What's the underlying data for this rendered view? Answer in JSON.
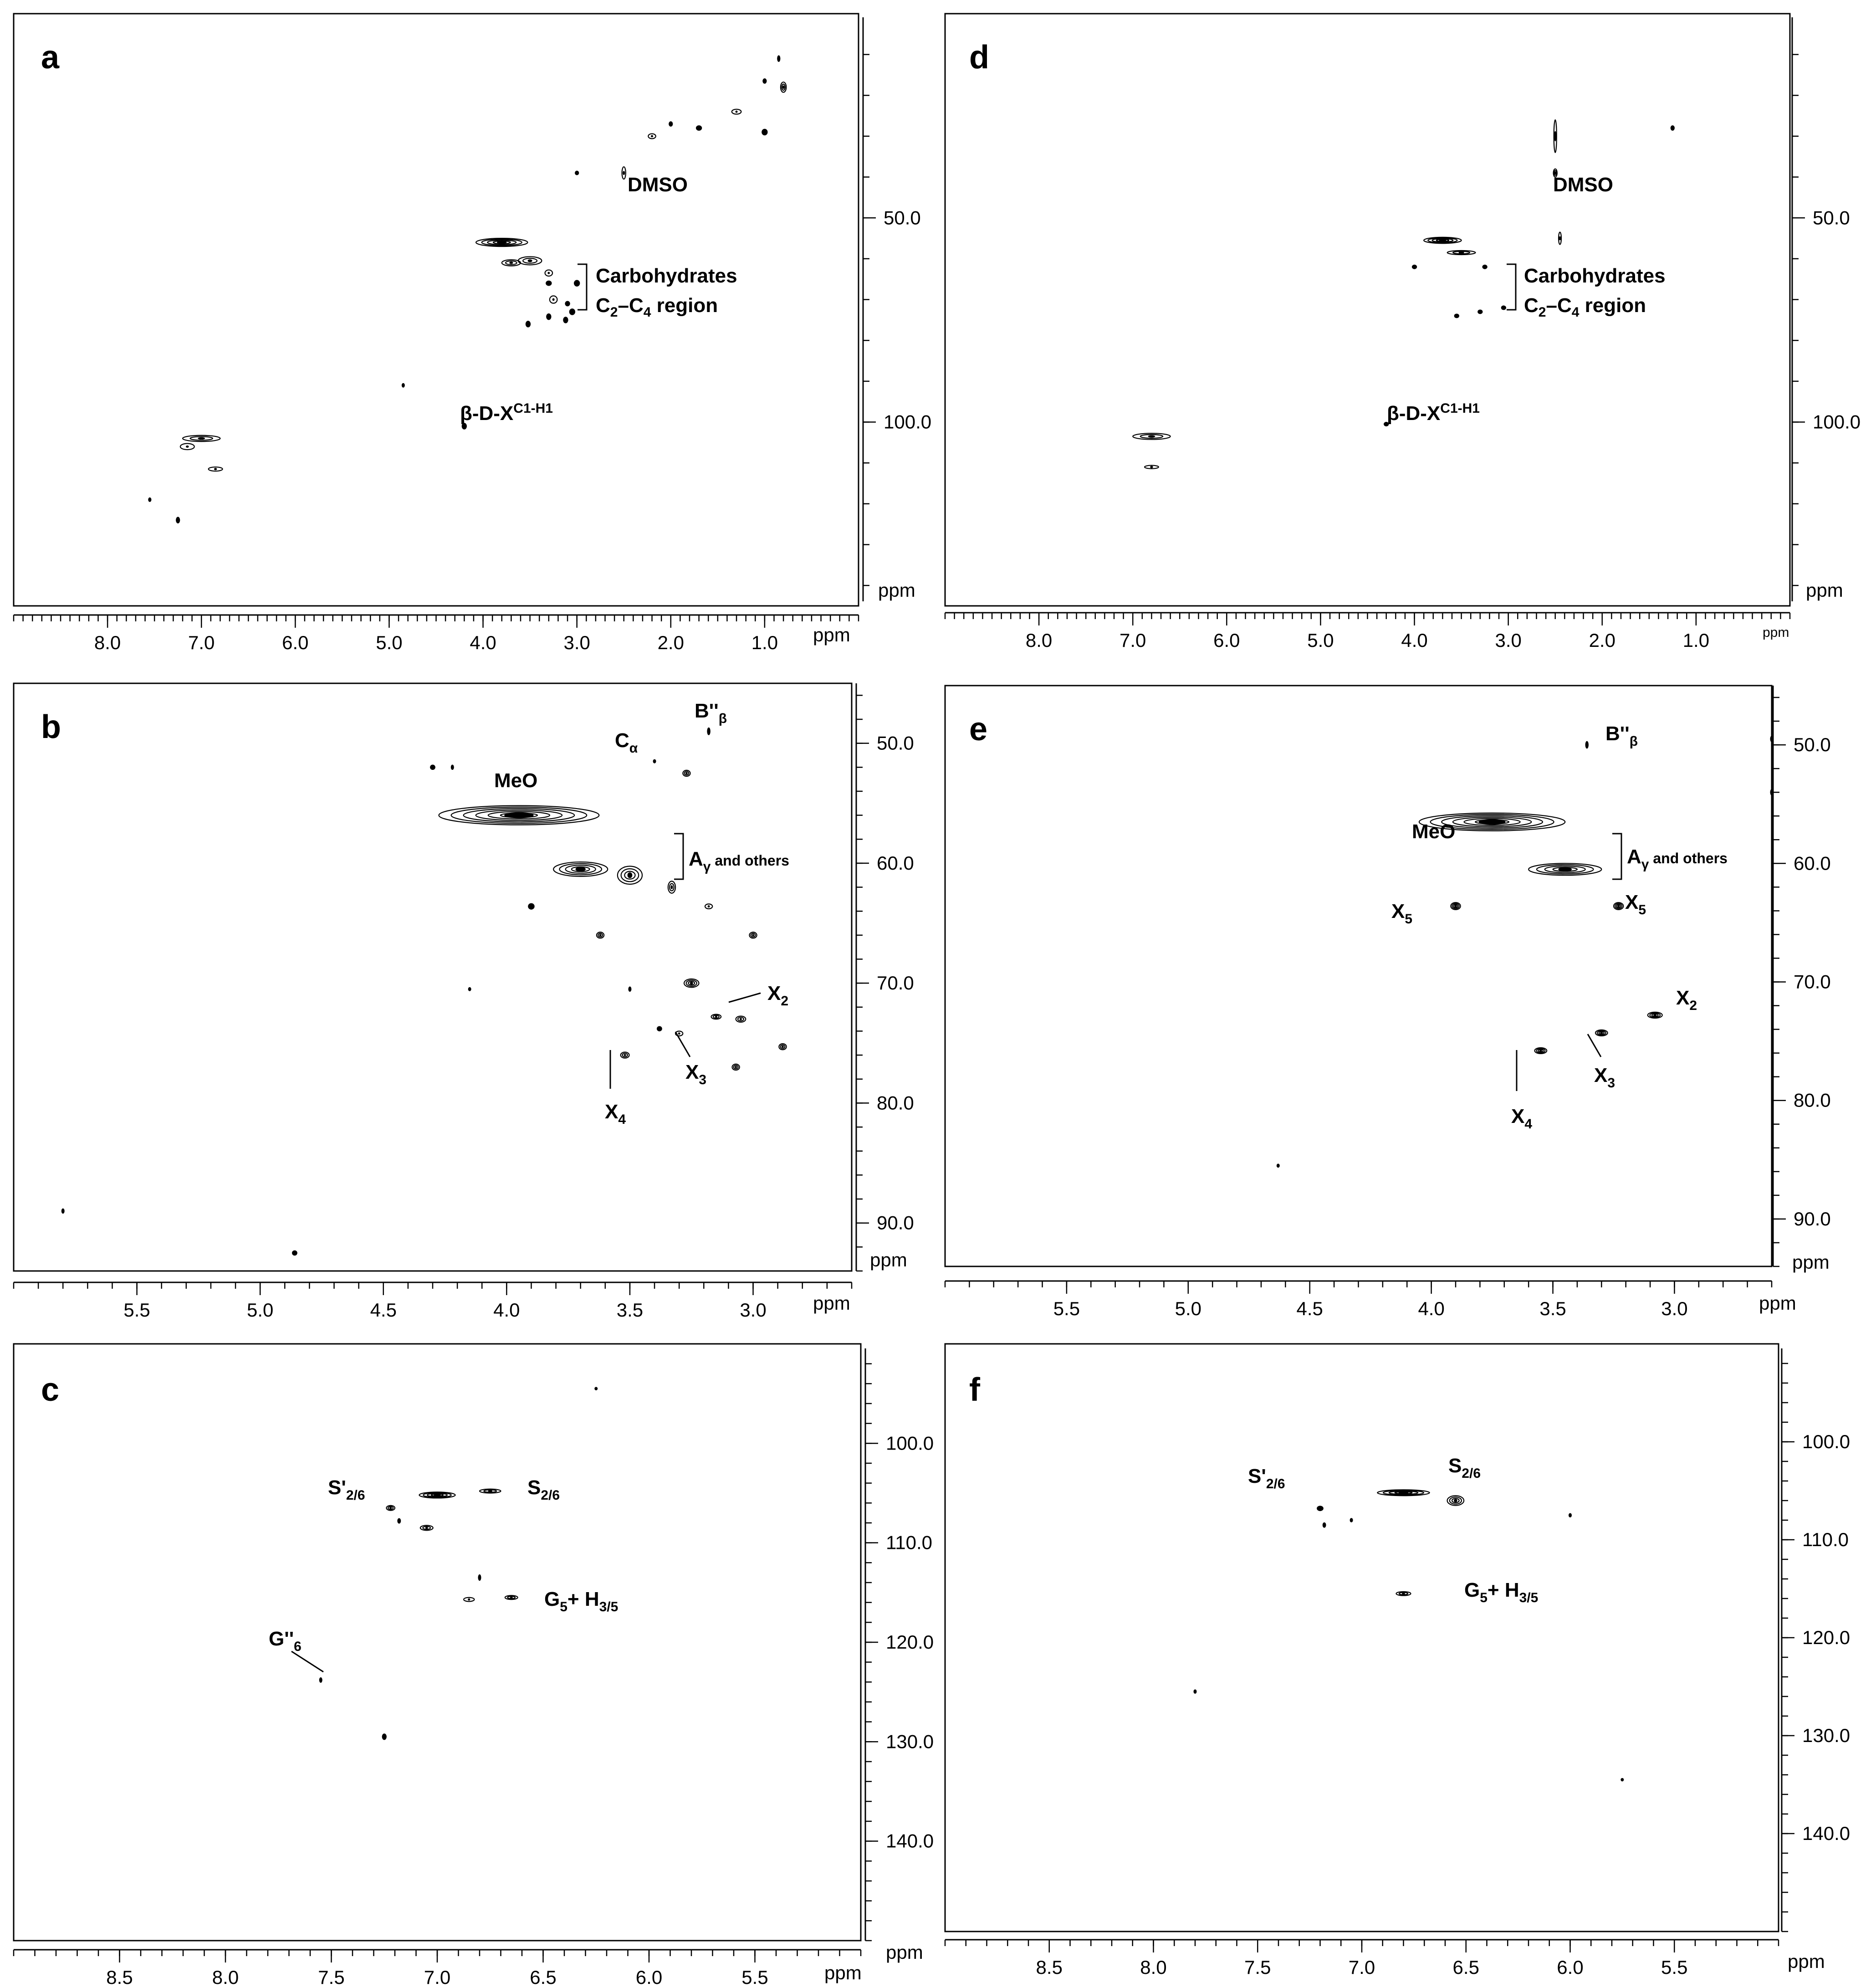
{
  "figure": {
    "description_labels": "panels",
    "panels": [
      {
        "id": "a",
        "letter": "a",
        "x_ppm_label": "ppm",
        "y_ppm_label": "ppm"
      },
      {
        "id": "b",
        "letter": "b",
        "x_ppm_label": "ppm",
        "y_ppm_label": "ppm"
      },
      {
        "id": "c",
        "letter": "c",
        "x_ppm_label": "ppm",
        "y_ppm_label": "ppm"
      },
      {
        "id": "d",
        "letter": "d",
        "x_ppm_label": "ppm",
        "y_ppm_label": "ppm"
      },
      {
        "id": "e",
        "letter": "e",
        "x_ppm_label": "ppm",
        "y_ppm_label": "ppm"
      },
      {
        "id": "f",
        "letter": "f",
        "x_ppm_label": "ppm",
        "y_ppm_label": "ppm"
      }
    ]
  },
  "chart_data": [
    {
      "panel": "a",
      "type": "scatter",
      "title": "",
      "xlabel": "ppm",
      "ylabel": "ppm",
      "xlim": [
        9.0,
        0.0
      ],
      "ylim": [
        0,
        145
      ],
      "x_ticks": [
        8.0,
        7.0,
        6.0,
        5.0,
        4.0,
        3.0,
        2.0,
        1.0
      ],
      "x_tick_labels": [
        "8.0",
        "7.0",
        "6.0",
        "5.0",
        "4.0",
        "3.0",
        "2.0",
        "1.0"
      ],
      "y_ticks": [
        50.0,
        100.0
      ],
      "y_tick_labels": [
        "50.0",
        "100.0"
      ],
      "annotations": {
        "dmso": "DMSO",
        "carb_line1": "Carbohydrates",
        "carb_line2_main": "C",
        "carb_line2_sub1": "2",
        "carb_line2_mid": "–C",
        "carb_line2_sub2": "4",
        "carb_line2_end": " region",
        "bdx_main": "β-D-X",
        "bdx_sup": "C1-H1"
      },
      "peaks": [
        {
          "x": 3.8,
          "y": 56.0,
          "w": 0.55,
          "h": 2.0,
          "contours": 4
        },
        {
          "x": 3.5,
          "y": 60.5,
          "w": 0.25,
          "h": 2.0,
          "contours": 2
        },
        {
          "x": 3.7,
          "y": 61.0,
          "w": 0.2,
          "h": 1.5,
          "contours": 2
        },
        {
          "x": 3.3,
          "y": 63.5,
          "w": 0.08,
          "h": 1.5,
          "contours": 1
        },
        {
          "x": 3.0,
          "y": 66.0,
          "w": 0.06,
          "h": 1.5,
          "contours": 1
        },
        {
          "x": 3.25,
          "y": 70.0,
          "w": 0.08,
          "h": 1.8,
          "contours": 1
        },
        {
          "x": 3.05,
          "y": 73.0,
          "w": 0.06,
          "h": 1.5,
          "contours": 1
        },
        {
          "x": 3.3,
          "y": 74.2,
          "w": 0.05,
          "h": 1.5,
          "contours": 1
        },
        {
          "x": 3.52,
          "y": 76.0,
          "w": 0.05,
          "h": 1.5,
          "contours": 1
        },
        {
          "x": 3.12,
          "y": 75.0,
          "w": 0.05,
          "h": 1.5,
          "contours": 1
        },
        {
          "x": 4.2,
          "y": 101.0,
          "w": 0.05,
          "h": 1.5,
          "contours": 1
        },
        {
          "x": 7.0,
          "y": 104.0,
          "w": 0.4,
          "h": 1.5,
          "contours": 2
        },
        {
          "x": 7.15,
          "y": 106.0,
          "w": 0.15,
          "h": 1.5,
          "contours": 1
        },
        {
          "x": 6.85,
          "y": 111.5,
          "w": 0.15,
          "h": 1.0,
          "contours": 1
        },
        {
          "x": 7.25,
          "y": 124.0,
          "w": 0.04,
          "h": 1.5,
          "contours": 1
        },
        {
          "x": 7.55,
          "y": 119.0,
          "w": 0.03,
          "h": 1.0,
          "contours": 1
        },
        {
          "x": 2.5,
          "y": 39.0,
          "w": 0.04,
          "h": 3.0,
          "contours": 1
        },
        {
          "x": 2.2,
          "y": 30.0,
          "w": 0.08,
          "h": 1.2,
          "contours": 1
        },
        {
          "x": 1.7,
          "y": 28.0,
          "w": 0.06,
          "h": 1.2,
          "contours": 1
        },
        {
          "x": 1.3,
          "y": 24.0,
          "w": 0.1,
          "h": 1.2,
          "contours": 1
        },
        {
          "x": 1.0,
          "y": 29.0,
          "w": 0.06,
          "h": 1.5,
          "contours": 1
        },
        {
          "x": 0.8,
          "y": 18.0,
          "w": 0.06,
          "h": 2.5,
          "contours": 2
        },
        {
          "x": 0.85,
          "y": 11.0,
          "w": 0.03,
          "h": 1.5,
          "contours": 1
        },
        {
          "x": 1.0,
          "y": 16.5,
          "w": 0.04,
          "h": 1.2,
          "contours": 1
        },
        {
          "x": 2.0,
          "y": 27.0,
          "w": 0.04,
          "h": 1.2,
          "contours": 1
        },
        {
          "x": 3.0,
          "y": 39.0,
          "w": 0.04,
          "h": 1.0,
          "contours": 1
        },
        {
          "x": 3.3,
          "y": 66.0,
          "w": 0.06,
          "h": 1.2,
          "contours": 1
        },
        {
          "x": 3.1,
          "y": 71.0,
          "w": 0.05,
          "h": 1.2,
          "contours": 1
        },
        {
          "x": 4.85,
          "y": 91.0,
          "w": 0.02,
          "h": 1.0,
          "contours": 1
        }
      ]
    },
    {
      "panel": "b",
      "type": "scatter",
      "title": "",
      "xlabel": "ppm",
      "ylabel": "ppm",
      "xlim": [
        6.0,
        2.6
      ],
      "ylim": [
        45.0,
        94.0
      ],
      "x_ticks": [
        5.5,
        5.0,
        4.5,
        4.0,
        3.5,
        3.0
      ],
      "x_tick_labels": [
        "5.5",
        "5.0",
        "4.5",
        "4.0",
        "3.5",
        "3.0"
      ],
      "y_ticks": [
        50.0,
        60.0,
        70.0,
        80.0,
        90.0
      ],
      "y_tick_labels": [
        "50.0",
        "60.0",
        "70.0",
        "80.0",
        "90.0"
      ],
      "annotations": {
        "b_beta_main": "B''",
        "b_beta_sub": "β",
        "c_alpha_main": "C",
        "c_alpha_sub": "α",
        "meo": "MeO",
        "a_gamma_main": "A",
        "a_gamma_sub": "γ",
        "a_gamma_rest": " and others",
        "x2_main": "X",
        "x2_sub": "2",
        "x3_main": "X",
        "x3_sub": "3",
        "x4_main": "X",
        "x4_sub": "4"
      },
      "peaks": [
        {
          "x": 3.95,
          "y": 56.0,
          "w": 0.65,
          "h": 1.6,
          "contours": 6
        },
        {
          "x": 3.7,
          "y": 60.5,
          "w": 0.22,
          "h": 1.2,
          "contours": 4
        },
        {
          "x": 3.5,
          "y": 61.0,
          "w": 0.1,
          "h": 1.5,
          "contours": 3
        },
        {
          "x": 3.33,
          "y": 62.0,
          "w": 0.03,
          "h": 1.0,
          "contours": 2
        },
        {
          "x": 3.9,
          "y": 63.6,
          "w": 0.025,
          "h": 0.5,
          "contours": 1
        },
        {
          "x": 3.62,
          "y": 66.0,
          "w": 0.03,
          "h": 0.5,
          "contours": 2
        },
        {
          "x": 3.18,
          "y": 63.6,
          "w": 0.03,
          "h": 0.4,
          "contours": 1
        },
        {
          "x": 3.0,
          "y": 66.0,
          "w": 0.03,
          "h": 0.5,
          "contours": 2
        },
        {
          "x": 3.25,
          "y": 70.0,
          "w": 0.06,
          "h": 0.7,
          "contours": 3
        },
        {
          "x": 3.05,
          "y": 73.0,
          "w": 0.04,
          "h": 0.5,
          "contours": 2
        },
        {
          "x": 3.15,
          "y": 72.8,
          "w": 0.04,
          "h": 0.4,
          "contours": 2
        },
        {
          "x": 3.3,
          "y": 74.2,
          "w": 0.03,
          "h": 0.4,
          "contours": 1
        },
        {
          "x": 3.38,
          "y": 73.8,
          "w": 0.02,
          "h": 0.4,
          "contours": 1
        },
        {
          "x": 3.52,
          "y": 76.0,
          "w": 0.035,
          "h": 0.5,
          "contours": 2
        },
        {
          "x": 3.07,
          "y": 77.0,
          "w": 0.03,
          "h": 0.5,
          "contours": 2
        },
        {
          "x": 2.88,
          "y": 75.3,
          "w": 0.03,
          "h": 0.5,
          "contours": 2
        },
        {
          "x": 3.27,
          "y": 52.5,
          "w": 0.03,
          "h": 0.5,
          "contours": 2
        },
        {
          "x": 3.18,
          "y": 49.0,
          "w": 0.012,
          "h": 0.6,
          "contours": 1
        },
        {
          "x": 4.86,
          "y": 92.5,
          "w": 0.02,
          "h": 0.4,
          "contours": 2
        },
        {
          "x": 5.8,
          "y": 89.0,
          "w": 0.008,
          "h": 0.4,
          "contours": 1
        },
        {
          "x": 4.3,
          "y": 52.0,
          "w": 0.02,
          "h": 0.4,
          "contours": 1
        },
        {
          "x": 4.22,
          "y": 52.0,
          "w": 0.01,
          "h": 0.4,
          "contours": 1
        },
        {
          "x": 3.5,
          "y": 70.5,
          "w": 0.01,
          "h": 0.4,
          "contours": 1
        },
        {
          "x": 4.15,
          "y": 70.5,
          "w": 0.006,
          "h": 0.3,
          "contours": 1
        },
        {
          "x": 3.4,
          "y": 51.5,
          "w": 0.006,
          "h": 0.3,
          "contours": 1
        }
      ]
    },
    {
      "panel": "c",
      "type": "scatter",
      "title": "",
      "xlabel": "ppm",
      "ylabel": "ppm",
      "xlim": [
        9.0,
        5.0
      ],
      "ylim": [
        90.0,
        150.0
      ],
      "x_ticks": [
        8.5,
        8.0,
        7.5,
        7.0,
        6.5,
        6.0,
        5.5
      ],
      "x_tick_labels": [
        "8.5",
        "8.0",
        "7.5",
        "7.0",
        "6.5",
        "6.0",
        "5.5"
      ],
      "y_ticks": [
        100.0,
        110.0,
        120.0,
        130.0,
        140.0
      ],
      "y_tick_labels": [
        "100.0",
        "110.0",
        "120.0",
        "130.0",
        "140.0"
      ],
      "annotations": {
        "s26p_main": "S'",
        "s26p_sub": "2/6",
        "s26_main": "S",
        "s26_sub": "2/6",
        "g5h35_main": "G",
        "g5h35_sub1": "5",
        "g5h35_mid": "+ H",
        "g5h35_sub2": "3/5",
        "g6pp_main": "G''",
        "g6pp_sub": "6"
      },
      "peaks": [
        {
          "x": 7.0,
          "y": 105.2,
          "w": 0.17,
          "h": 0.6,
          "contours": 4
        },
        {
          "x": 6.75,
          "y": 104.8,
          "w": 0.1,
          "h": 0.4,
          "contours": 2
        },
        {
          "x": 7.22,
          "y": 106.5,
          "w": 0.04,
          "h": 0.5,
          "contours": 2
        },
        {
          "x": 7.18,
          "y": 107.8,
          "w": 0.015,
          "h": 0.5,
          "contours": 1
        },
        {
          "x": 7.05,
          "y": 108.5,
          "w": 0.06,
          "h": 0.5,
          "contours": 2
        },
        {
          "x": 6.8,
          "y": 113.5,
          "w": 0.012,
          "h": 0.6,
          "contours": 1
        },
        {
          "x": 6.65,
          "y": 115.5,
          "w": 0.06,
          "h": 0.4,
          "contours": 2
        },
        {
          "x": 6.85,
          "y": 115.7,
          "w": 0.05,
          "h": 0.4,
          "contours": 1
        },
        {
          "x": 7.55,
          "y": 123.8,
          "w": 0.01,
          "h": 0.5,
          "contours": 1
        },
        {
          "x": 7.25,
          "y": 129.5,
          "w": 0.02,
          "h": 0.6,
          "contours": 1
        },
        {
          "x": 6.25,
          "y": 94.5,
          "w": 0.005,
          "h": 0.3,
          "contours": 1
        }
      ]
    },
    {
      "panel": "d",
      "type": "scatter",
      "title": "",
      "xlabel": "ppm",
      "ylabel": "ppm",
      "xlim": [
        9.0,
        0.0
      ],
      "ylim": [
        0,
        145
      ],
      "x_ticks": [
        8.0,
        7.0,
        6.0,
        5.0,
        4.0,
        3.0,
        2.0,
        1.0
      ],
      "x_tick_labels": [
        "8.0",
        "7.0",
        "6.0",
        "5.0",
        "4.0",
        "3.0",
        "2.0",
        "1.0"
      ],
      "y_ticks": [
        50.0,
        100.0
      ],
      "y_tick_labels": [
        "50.0",
        "100.0"
      ],
      "annotations": {
        "dmso": "DMSO",
        "carb_line1": "Carbohydrates",
        "carb_line2_main": "C",
        "carb_line2_sub1": "2",
        "carb_line2_mid": "–C",
        "carb_line2_sub2": "4",
        "carb_line2_end": " region",
        "bdx_main": "β-D-X",
        "bdx_sup": "C1-H1"
      },
      "peaks": [
        {
          "x": 3.7,
          "y": 55.5,
          "w": 0.4,
          "h": 1.5,
          "contours": 4
        },
        {
          "x": 3.5,
          "y": 58.5,
          "w": 0.3,
          "h": 1.0,
          "contours": 2
        },
        {
          "x": 2.5,
          "y": 39.0,
          "w": 0.04,
          "h": 2.0,
          "contours": 2
        },
        {
          "x": 4.0,
          "y": 62.0,
          "w": 0.05,
          "h": 1.0,
          "contours": 1
        },
        {
          "x": 3.25,
          "y": 62.0,
          "w": 0.05,
          "h": 1.0,
          "contours": 1
        },
        {
          "x": 3.55,
          "y": 74.0,
          "w": 0.05,
          "h": 1.0,
          "contours": 1
        },
        {
          "x": 3.3,
          "y": 73.0,
          "w": 0.05,
          "h": 1.0,
          "contours": 1
        },
        {
          "x": 3.05,
          "y": 72.0,
          "w": 0.05,
          "h": 1.0,
          "contours": 1
        },
        {
          "x": 4.3,
          "y": 100.5,
          "w": 0.05,
          "h": 1.0,
          "contours": 1
        },
        {
          "x": 6.8,
          "y": 103.5,
          "w": 0.4,
          "h": 1.5,
          "contours": 2
        },
        {
          "x": 6.8,
          "y": 111.0,
          "w": 0.15,
          "h": 0.8,
          "contours": 1
        },
        {
          "x": 1.25,
          "y": 28.0,
          "w": 0.04,
          "h": 1.2,
          "contours": 1
        },
        {
          "x": 2.5,
          "y": 30.0,
          "w": 0.01,
          "h": 8.0,
          "contours": 1
        },
        {
          "x": 2.45,
          "y": 55.0,
          "w": 0.005,
          "h": 3.0,
          "contours": 1
        }
      ]
    },
    {
      "panel": "e",
      "type": "scatter",
      "title": "",
      "xlabel": "ppm",
      "ylabel": "ppm",
      "xlim": [
        6.0,
        2.6
      ],
      "ylim": [
        45.0,
        94.0
      ],
      "x_ticks": [
        5.5,
        5.0,
        4.5,
        4.0,
        3.5,
        3.0
      ],
      "x_tick_labels": [
        "5.5",
        "5.0",
        "4.5",
        "4.0",
        "3.5",
        "3.0"
      ],
      "y_ticks": [
        50.0,
        60.0,
        70.0,
        80.0,
        90.0
      ],
      "y_tick_labels": [
        "50.0",
        "60.0",
        "70.0",
        "80.0",
        "90.0"
      ],
      "annotations": {
        "b_beta_main": "B''",
        "b_beta_sub": "β",
        "meo": "MeO",
        "a_gamma_main": "A",
        "a_gamma_sub": "γ",
        "a_gamma_rest": " and others",
        "x5a_main": "X",
        "x5a_sub": "5",
        "x5b_main": "X",
        "x5b_sub": "5",
        "x2_main": "X",
        "x2_sub": "2",
        "x3_main": "X",
        "x3_sub": "3",
        "x4_main": "X",
        "x4_sub": "4"
      },
      "peaks": [
        {
          "x": 3.75,
          "y": 56.5,
          "w": 0.6,
          "h": 1.5,
          "contours": 6
        },
        {
          "x": 3.45,
          "y": 60.5,
          "w": 0.3,
          "h": 1.0,
          "contours": 4
        },
        {
          "x": 3.9,
          "y": 63.6,
          "w": 0.04,
          "h": 0.6,
          "contours": 3
        },
        {
          "x": 3.23,
          "y": 63.6,
          "w": 0.04,
          "h": 0.6,
          "contours": 3
        },
        {
          "x": 3.08,
          "y": 72.8,
          "w": 0.06,
          "h": 0.5,
          "contours": 3
        },
        {
          "x": 3.3,
          "y": 74.3,
          "w": 0.05,
          "h": 0.5,
          "contours": 3
        },
        {
          "x": 3.55,
          "y": 75.8,
          "w": 0.05,
          "h": 0.5,
          "contours": 3
        },
        {
          "x": 3.36,
          "y": 50.0,
          "w": 0.012,
          "h": 0.6,
          "contours": 1
        },
        {
          "x": 4.63,
          "y": 85.5,
          "w": 0.006,
          "h": 0.3,
          "contours": 1
        },
        {
          "x": 2.6,
          "y": 49.5,
          "w": 0.006,
          "h": 0.5,
          "contours": 1
        },
        {
          "x": 2.6,
          "y": 54.0,
          "w": 0.006,
          "h": 0.5,
          "contours": 1
        }
      ]
    },
    {
      "panel": "f",
      "type": "scatter",
      "title": "",
      "xlabel": "ppm",
      "ylabel": "ppm",
      "xlim": [
        9.0,
        5.0
      ],
      "ylim": [
        90.0,
        150.0
      ],
      "x_ticks": [
        8.5,
        8.0,
        7.5,
        7.0,
        6.5,
        6.0,
        5.5
      ],
      "x_tick_labels": [
        "8.5",
        "8.0",
        "7.5",
        "7.0",
        "6.5",
        "6.0",
        "5.5"
      ],
      "y_ticks": [
        100.0,
        110.0,
        120.0,
        130.0,
        140.0
      ],
      "y_tick_labels": [
        "100.0",
        "110.0",
        "120.0",
        "130.0",
        "140.0"
      ],
      "annotations": {
        "s26p_main": "S'",
        "s26p_sub": "2/6",
        "s26_main": "S",
        "s26_sub": "2/6",
        "g5h35_main": "G",
        "g5h35_sub1": "5",
        "g5h35_mid": "+ H",
        "g5h35_sub2": "3/5"
      },
      "peaks": [
        {
          "x": 6.8,
          "y": 105.2,
          "w": 0.25,
          "h": 0.6,
          "contours": 4
        },
        {
          "x": 6.55,
          "y": 106.0,
          "w": 0.08,
          "h": 1.0,
          "contours": 3
        },
        {
          "x": 7.2,
          "y": 106.8,
          "w": 0.03,
          "h": 0.5,
          "contours": 2
        },
        {
          "x": 7.18,
          "y": 108.5,
          "w": 0.015,
          "h": 0.5,
          "contours": 1
        },
        {
          "x": 7.05,
          "y": 108.0,
          "w": 0.01,
          "h": 0.4,
          "contours": 1
        },
        {
          "x": 6.8,
          "y": 115.5,
          "w": 0.07,
          "h": 0.4,
          "contours": 2
        },
        {
          "x": 6.0,
          "y": 107.5,
          "w": 0.012,
          "h": 0.4,
          "contours": 1
        },
        {
          "x": 7.8,
          "y": 125.5,
          "w": 0.008,
          "h": 0.4,
          "contours": 1
        },
        {
          "x": 5.75,
          "y": 134.5,
          "w": 0.004,
          "h": 0.3,
          "contours": 1
        }
      ]
    }
  ]
}
